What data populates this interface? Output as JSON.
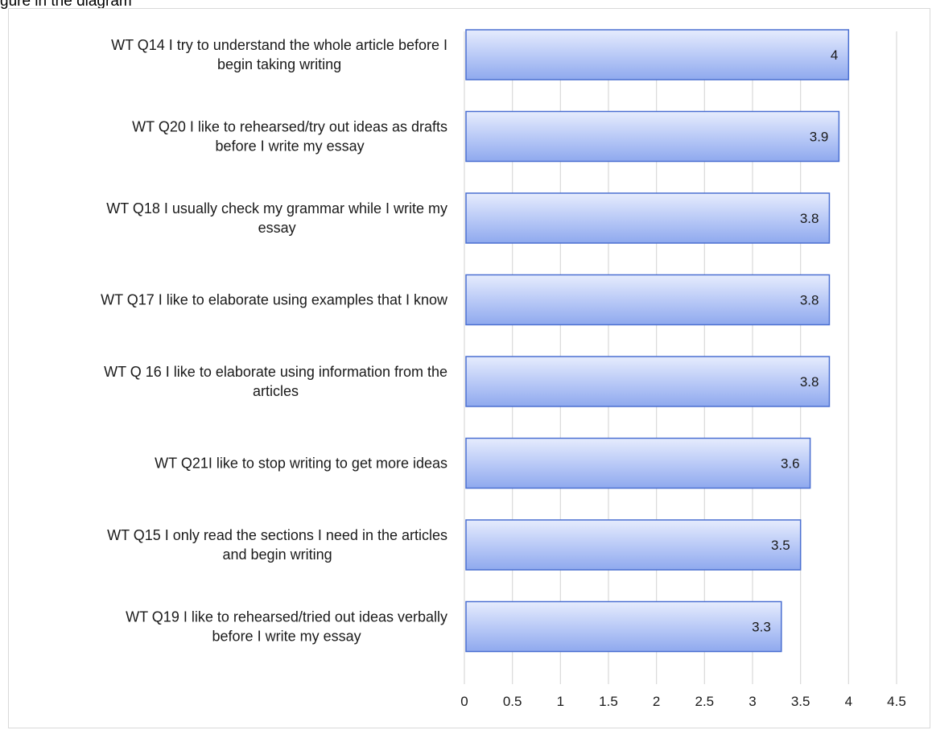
{
  "top_caption": "gure in the diagram",
  "chart_data": {
    "type": "bar",
    "orientation": "horizontal",
    "title": "",
    "xlabel": "",
    "ylabel": "",
    "xlim": [
      0,
      4.5
    ],
    "x_ticks": [
      0,
      0.5,
      1,
      1.5,
      2,
      2.5,
      3,
      3.5,
      4,
      4.5
    ],
    "x_tick_labels": [
      "0",
      "0.5",
      "1",
      "1.5",
      "2",
      "2.5",
      "3",
      "3.5",
      "4",
      "4.5"
    ],
    "grid": true,
    "legend": "none",
    "bar_color": "#aabdf5",
    "bar_border_color": "#4a6fd1",
    "gridline_color": "#d9d9d9",
    "categories": [
      [
        "WT Q14 I try to understand the whole article before I",
        "begin taking writing"
      ],
      [
        "WT Q20 I like to rehearsed/try out ideas as drafts",
        "before I write my essay"
      ],
      [
        "WT Q18 I usually check my grammar while I write my",
        "essay"
      ],
      [
        "WT Q17 I like to elaborate using examples that I know"
      ],
      [
        "WT Q 16 I like to elaborate using information from the",
        "articles"
      ],
      [
        "WT Q21I like to stop writing to get more ideas"
      ],
      [
        "WT Q15 I only read the sections I need in the articles",
        "and begin writing"
      ],
      [
        "WT Q19 I like to rehearsed/tried out ideas verbally",
        "before I write my essay"
      ]
    ],
    "values": [
      4,
      3.9,
      3.8,
      3.8,
      3.8,
      3.6,
      3.5,
      3.3
    ],
    "data_labels": [
      "4",
      "3.9",
      "3.8",
      "3.8",
      "3.8",
      "3.6",
      "3.5",
      "3.3"
    ]
  }
}
